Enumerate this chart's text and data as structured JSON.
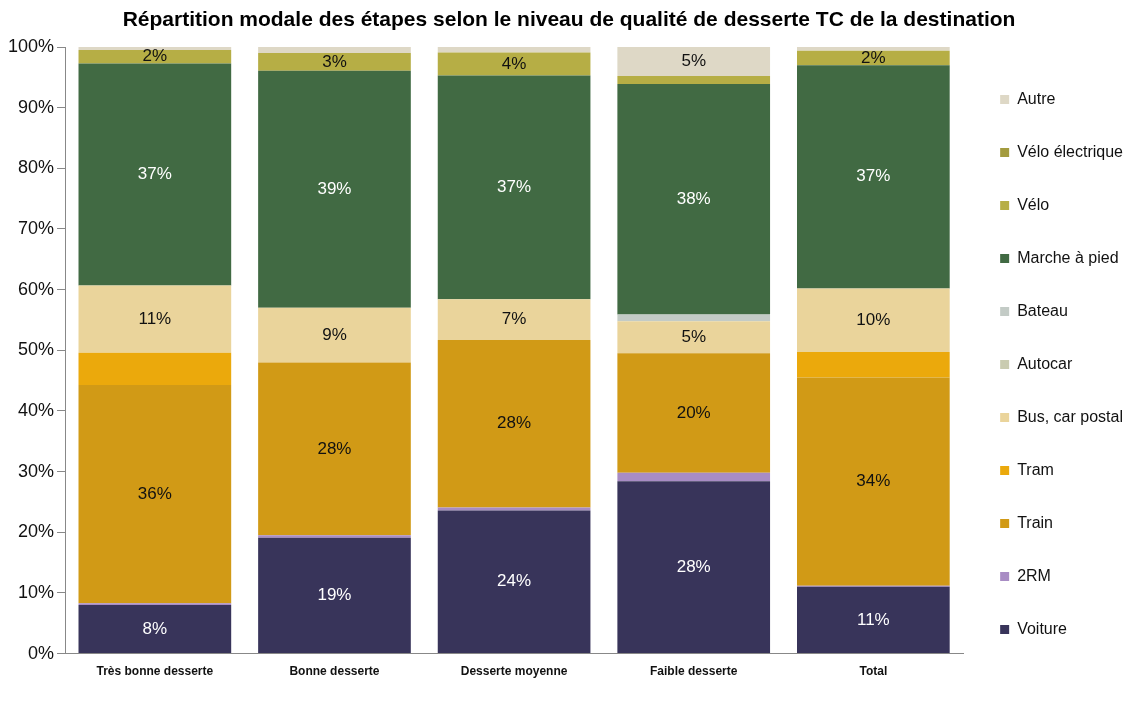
{
  "chart_data": {
    "type": "bar",
    "stacked": true,
    "title": "Répartition modale des étapes selon le niveau de qualité de desserte TC de la destination",
    "categories": [
      "Très bonne desserte",
      "Bonne desserte",
      "Desserte moyenne",
      "Faible desserte",
      "Total"
    ],
    "ylim": [
      0,
      100
    ],
    "yticks": [
      {
        "value": 0,
        "label": "0%"
      },
      {
        "value": 10,
        "label": "10%"
      },
      {
        "value": 20,
        "label": "20%"
      },
      {
        "value": 30,
        "label": "30%"
      },
      {
        "value": 40,
        "label": "40%"
      },
      {
        "value": 50,
        "label": "50%"
      },
      {
        "value": 60,
        "label": "60%"
      },
      {
        "value": 70,
        "label": "70%"
      },
      {
        "value": 80,
        "label": "80%"
      },
      {
        "value": 90,
        "label": "90%"
      },
      {
        "value": 100,
        "label": "100%"
      }
    ],
    "grid": false,
    "legend": "right",
    "series": [
      {
        "name": "Voiture",
        "color": "#38345a",
        "values": [
          8.0,
          19.1,
          23.6,
          28.4,
          11.0
        ],
        "value_labels": [
          "8%",
          "19%",
          "24%",
          "28%",
          "11%"
        ]
      },
      {
        "name": "2RM",
        "color": "#a88cc4",
        "values": [
          0.3,
          0.4,
          0.5,
          1.4,
          0.2
        ]
      },
      {
        "name": "Train",
        "color": "#d19a16",
        "values": [
          36.0,
          28.5,
          27.6,
          19.7,
          34.3
        ],
        "value_labels": [
          "36%",
          "28%",
          "28%",
          "20%",
          "34%"
        ]
      },
      {
        "name": "Tram",
        "color": "#eba90c",
        "values": [
          5.3,
          0,
          0,
          0,
          4.2
        ]
      },
      {
        "name": "Bus, car postal",
        "color": "#ead49b",
        "values": [
          11.1,
          9.0,
          6.7,
          5.3,
          10.5
        ],
        "value_labels": [
          "11%",
          "9%",
          "7%",
          "5%",
          "10%"
        ]
      },
      {
        "name": "Autocar",
        "color": "#c9cbb0",
        "values": [
          0,
          0,
          0,
          0,
          0
        ]
      },
      {
        "name": "Bateau",
        "color": "#c3cbc6",
        "values": [
          0,
          0,
          0,
          1.1,
          0
        ]
      },
      {
        "name": "Marche à pied",
        "color": "#416a43",
        "values": [
          36.6,
          39.1,
          36.9,
          38.0,
          36.8
        ],
        "value_labels": [
          "37%",
          "39%",
          "37%",
          "38%",
          "37%"
        ]
      },
      {
        "name": "Vélo",
        "color": "#b6ae45",
        "values": [
          2.2,
          2.9,
          3.8,
          1.3,
          2.4
        ],
        "value_labels": [
          "2%",
          "3%",
          "4%",
          null,
          "2%"
        ]
      },
      {
        "name": "Vélo électrique",
        "color": "#a39b3e",
        "values": [
          0,
          0,
          0,
          0,
          0
        ]
      },
      {
        "name": "Autre",
        "color": "#ded8c6",
        "values": [
          0.5,
          1.0,
          0.9,
          4.8,
          0.6
        ],
        "value_labels": [
          null,
          null,
          null,
          "5%",
          null
        ]
      }
    ]
  }
}
